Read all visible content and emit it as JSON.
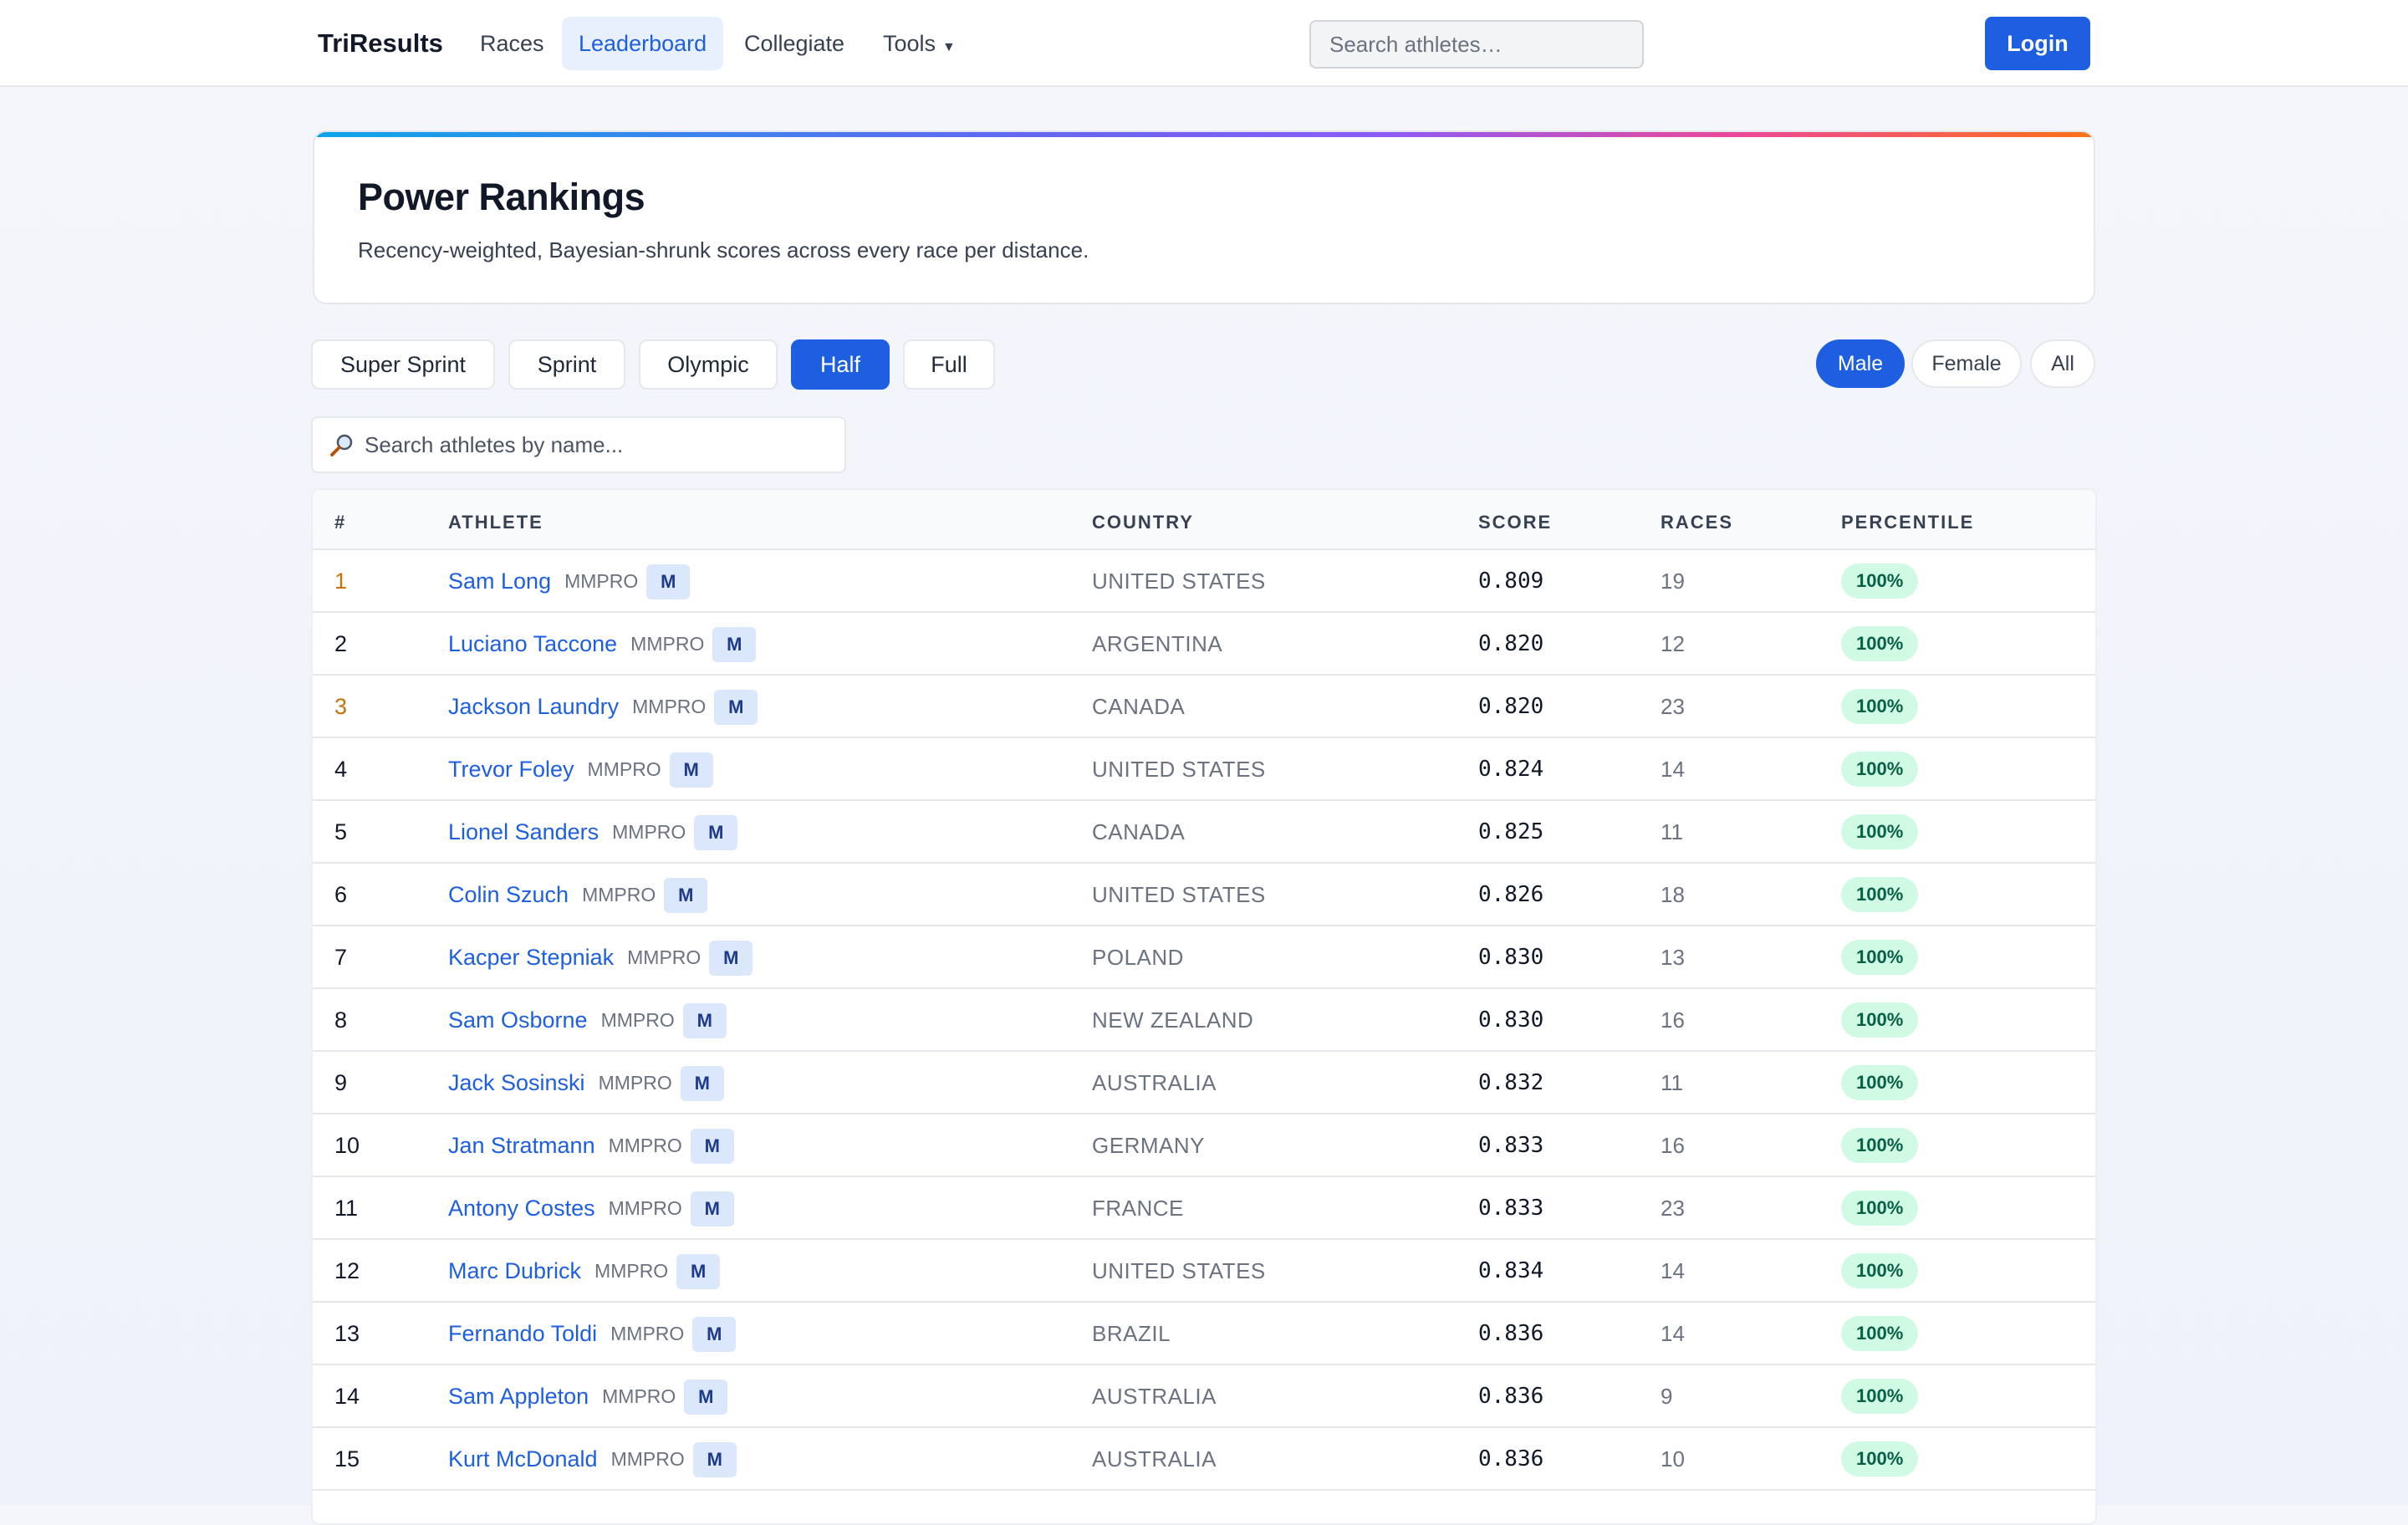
{
  "app": {
    "brand": "TriResults"
  },
  "nav": {
    "items": [
      {
        "label": "Races",
        "active": false
      },
      {
        "label": "Leaderboard",
        "active": true
      },
      {
        "label": "Collegiate",
        "active": false
      },
      {
        "label": "Tools",
        "active": false
      }
    ],
    "search_placeholder": "Search athletes…",
    "login_label": "Login"
  },
  "hero": {
    "title": "Power Rankings",
    "description": "Recency-weighted, Bayesian-shrunk scores across every race per distance."
  },
  "distances": [
    {
      "label": "Super Sprint",
      "active": false
    },
    {
      "label": "Sprint",
      "active": false
    },
    {
      "label": "Olympic",
      "active": false
    },
    {
      "label": "Half",
      "active": true
    },
    {
      "label": "Full",
      "active": false
    }
  ],
  "genders": [
    {
      "label": "Male",
      "active": true
    },
    {
      "label": "Female",
      "active": false
    },
    {
      "label": "All",
      "active": false
    }
  ],
  "name_search": {
    "placeholder": "Search athletes by name..."
  },
  "table": {
    "headers": {
      "rank": "#",
      "athlete": "ATHLETE",
      "country": "COUNTRY",
      "score": "SCORE",
      "races": "RACES",
      "percentile": "PERCENTILE"
    },
    "rows": [
      {
        "rank": "1",
        "name": "Sam Long",
        "division": "MMPRO",
        "tag": "M",
        "country": "UNITED STATES",
        "score": "0.809",
        "races": "19",
        "percentile": "100%"
      },
      {
        "rank": "2",
        "name": "Luciano Taccone",
        "division": "MMPRO",
        "tag": "M",
        "country": "ARGENTINA",
        "score": "0.820",
        "races": "12",
        "percentile": "100%"
      },
      {
        "rank": "3",
        "name": "Jackson Laundry",
        "division": "MMPRO",
        "tag": "M",
        "country": "CANADA",
        "score": "0.820",
        "races": "23",
        "percentile": "100%"
      },
      {
        "rank": "4",
        "name": "Trevor Foley",
        "division": "MMPRO",
        "tag": "M",
        "country": "UNITED STATES",
        "score": "0.824",
        "races": "14",
        "percentile": "100%"
      },
      {
        "rank": "5",
        "name": "Lionel Sanders",
        "division": "MMPRO",
        "tag": "M",
        "country": "CANADA",
        "score": "0.825",
        "races": "11",
        "percentile": "100%"
      },
      {
        "rank": "6",
        "name": "Colin Szuch",
        "division": "MMPRO",
        "tag": "M",
        "country": "UNITED STATES",
        "score": "0.826",
        "races": "18",
        "percentile": "100%"
      },
      {
        "rank": "7",
        "name": "Kacper Stepniak",
        "division": "MMPRO",
        "tag": "M",
        "country": "POLAND",
        "score": "0.830",
        "races": "13",
        "percentile": "100%"
      },
      {
        "rank": "8",
        "name": "Sam Osborne",
        "division": "MMPRO",
        "tag": "M",
        "country": "NEW ZEALAND",
        "score": "0.830",
        "races": "16",
        "percentile": "100%"
      },
      {
        "rank": "9",
        "name": "Jack Sosinski",
        "division": "MMPRO",
        "tag": "M",
        "country": "AUSTRALIA",
        "score": "0.832",
        "races": "11",
        "percentile": "100%"
      },
      {
        "rank": "10",
        "name": "Jan Stratmann",
        "division": "MMPRO",
        "tag": "M",
        "country": "GERMANY",
        "score": "0.833",
        "races": "16",
        "percentile": "100%"
      },
      {
        "rank": "11",
        "name": "Antony Costes",
        "division": "MMPRO",
        "tag": "M",
        "country": "FRANCE",
        "score": "0.833",
        "races": "23",
        "percentile": "100%"
      },
      {
        "rank": "12",
        "name": "Marc Dubrick",
        "division": "MMPRO",
        "tag": "M",
        "country": "UNITED STATES",
        "score": "0.834",
        "races": "14",
        "percentile": "100%"
      },
      {
        "rank": "13",
        "name": "Fernando Toldi",
        "division": "MMPRO",
        "tag": "M",
        "country": "BRAZIL",
        "score": "0.836",
        "races": "14",
        "percentile": "100%"
      },
      {
        "rank": "14",
        "name": "Sam Appleton",
        "division": "MMPRO",
        "tag": "M",
        "country": "AUSTRALIA",
        "score": "0.836",
        "races": "9",
        "percentile": "100%"
      },
      {
        "rank": "15",
        "name": "Kurt McDonald",
        "division": "MMPRO",
        "tag": "M",
        "country": "AUSTRALIA",
        "score": "0.836",
        "races": "10",
        "percentile": "100%"
      }
    ]
  },
  "colors": {
    "accent": "#1d5fe0",
    "medal": "#c2740a",
    "badge_bg": "#d1fae5",
    "badge_fg": "#065f46"
  },
  "icons": {
    "search": "magnifier-icon",
    "dropdown": "caret-down-icon"
  }
}
